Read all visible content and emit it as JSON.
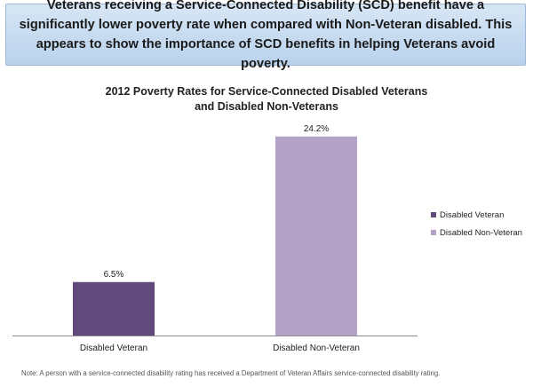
{
  "banner": {
    "text": "Veterans receiving a Service-Connected Disability (SCD) benefit have a significantly lower poverty rate when compared with Non-Veteran disabled.  This appears to show the importance of SCD benefits in helping Veterans avoid poverty."
  },
  "chart_data": {
    "type": "bar",
    "title_line1": "2012 Poverty Rates for Service-Connected Disabled Veterans",
    "title_line2": "and Disabled Non-Veterans",
    "categories": [
      "Disabled Veteran",
      "Disabled Non-Veteran"
    ],
    "values": [
      6.5,
      24.2
    ],
    "data_labels": [
      "6.5%",
      "24.2%"
    ],
    "colors": [
      "#604a7b",
      "#b3a2c7"
    ],
    "ylim": [
      0,
      25.9
    ],
    "grid": false,
    "legend": {
      "placement": "right",
      "entries": [
        "Disabled Veteran",
        "Disabled Non-Veteran"
      ]
    }
  },
  "note": "Note: A  person with a service-connected disability rating has received a Department of Veteran Affairs service-connected disability rating."
}
